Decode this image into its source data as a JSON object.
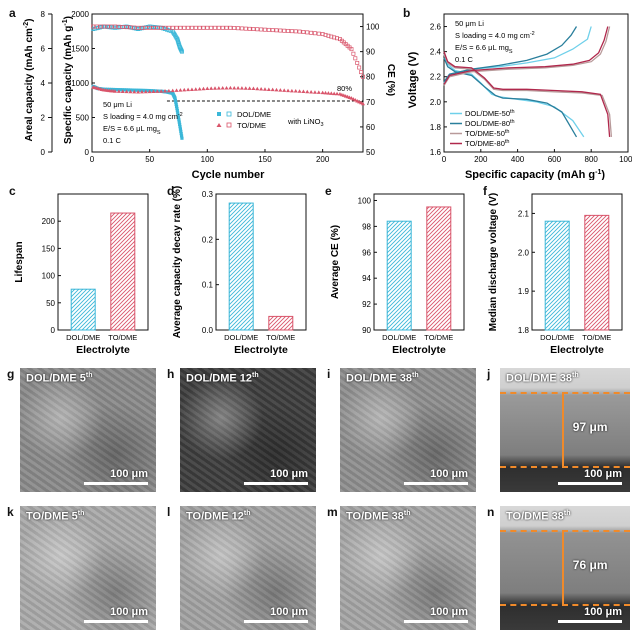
{
  "figure": {
    "panel_letters": [
      "a",
      "b",
      "c",
      "d",
      "e",
      "f",
      "g",
      "h",
      "i",
      "j",
      "k",
      "l",
      "m",
      "n"
    ]
  },
  "colors": {
    "dol": "#3bb7d8",
    "to": "#d9546a",
    "b_dol50": "#6fd0ea",
    "b_dol80": "#2a7f9c",
    "b_to50": "#b89a9a",
    "b_to80": "#b0284c"
  },
  "panel_a": {
    "left_axis_outer_label": "Areal capacity (mAh cm",
    "left_axis_outer_label_sup": "-2",
    "left_axis_outer_label_end": ")",
    "left_axis_inner_label": "Specific capacity (mAh g",
    "left_axis_inner_label_sup": "-1",
    "left_axis_inner_label_end": ")",
    "right_axis_label": "CE (%)",
    "xlabel": "Cycle number",
    "conditions": [
      "50 μm Li",
      "S loading = 4.0 mg cm",
      "E/S = 6.6 μL mg",
      "0.1 C"
    ],
    "conditions_sup": [
      "",
      "-2",
      "S",
      ""
    ],
    "legend_dol": "DOL/DME",
    "legend_to": "TO/DME",
    "legend_note": "with LiNO",
    "legend_note_sub": "3",
    "retention_label": "80%"
  },
  "panel_b": {
    "ylabel": "Voltage (V)",
    "xlabel": "Specific capacity (mAh g",
    "xlabel_sup": "-1",
    "xlabel_end": ")",
    "conditions": [
      "50 μm Li",
      "S loading = 4.0 mg cm",
      "E/S = 6.6 μL mg",
      "0.1 C"
    ],
    "conditions_sup": [
      "",
      "-2",
      "S",
      ""
    ],
    "legend": [
      {
        "name": "DOL/DME-50",
        "sup": "th"
      },
      {
        "name": "DOL/DME-80",
        "sup": "th"
      },
      {
        "name": "TO/DME-50",
        "sup": "th"
      },
      {
        "name": "TO/DME-80",
        "sup": "th"
      }
    ]
  },
  "chart_data": [
    {
      "panel": "a",
      "type": "scatter",
      "xlim": [
        0,
        235
      ],
      "x_ticks": [
        0,
        50,
        100,
        150,
        200
      ],
      "y_specific_lim": [
        0,
        2000
      ],
      "y_specific_ticks": [
        0,
        500,
        1000,
        1500,
        2000
      ],
      "y_areal_lim": [
        0,
        8
      ],
      "y_areal_ticks": [
        0,
        2,
        4,
        6,
        8
      ],
      "y_ce_lim": [
        50,
        105
      ],
      "y_ce_ticks": [
        50,
        60,
        70,
        80,
        90,
        100
      ],
      "series": [
        {
          "name": "DOL/DME",
          "metric": "specific_capacity",
          "x": [
            1,
            5,
            10,
            20,
            30,
            40,
            50,
            60,
            65,
            70,
            72,
            74,
            76,
            78
          ],
          "y": [
            950,
            920,
            910,
            905,
            900,
            895,
            890,
            880,
            870,
            850,
            780,
            600,
            400,
            200
          ]
        },
        {
          "name": "TO/DME",
          "metric": "specific_capacity",
          "x": [
            1,
            10,
            20,
            40,
            60,
            80,
            100,
            120,
            140,
            160,
            180,
            200,
            215,
            225,
            235
          ],
          "y": [
            940,
            900,
            880,
            870,
            880,
            900,
            920,
            930,
            920,
            900,
            880,
            860,
            840,
            780,
            700
          ]
        },
        {
          "name": "DOL/DME",
          "metric": "CE",
          "x": [
            1,
            10,
            20,
            30,
            40,
            50,
            60,
            70,
            74,
            76,
            78
          ],
          "y": [
            99,
            100,
            99.5,
            100,
            99,
            100,
            99.5,
            98,
            95,
            92,
            90
          ]
        },
        {
          "name": "TO/DME",
          "metric": "CE",
          "x": [
            1,
            20,
            40,
            60,
            80,
            100,
            120,
            140,
            160,
            180,
            200,
            215,
            225,
            235
          ],
          "y": [
            100,
            100,
            99.5,
            99.5,
            99.5,
            99.5,
            99.5,
            99,
            98.5,
            98,
            97,
            95,
            91,
            80
          ]
        }
      ],
      "reference_line_specific": 740
    },
    {
      "panel": "b",
      "type": "line",
      "xlim": [
        0,
        1000
      ],
      "x_ticks": [
        0,
        200,
        400,
        600,
        800,
        1000
      ],
      "ylim": [
        1.6,
        2.7
      ],
      "y_ticks": [
        1.6,
        1.8,
        2.0,
        2.2,
        2.4,
        2.6
      ],
      "series": [
        {
          "name": "DOL/DME-50th",
          "branch": "discharge",
          "x": [
            0,
            20,
            60,
            150,
            200,
            260,
            300,
            400,
            500,
            600,
            700,
            760
          ],
          "y": [
            2.38,
            2.3,
            2.25,
            2.22,
            2.15,
            2.06,
            2.04,
            2.02,
            2.0,
            1.96,
            1.85,
            1.72
          ]
        },
        {
          "name": "DOL/DME-50th",
          "branch": "charge",
          "x": [
            0,
            30,
            150,
            300,
            450,
            600,
            700,
            780,
            800
          ],
          "y": [
            2.15,
            2.22,
            2.26,
            2.28,
            2.31,
            2.35,
            2.42,
            2.5,
            2.6
          ]
        },
        {
          "name": "DOL/DME-80th",
          "branch": "discharge",
          "x": [
            0,
            20,
            60,
            150,
            220,
            280,
            320,
            450,
            560,
            640,
            720
          ],
          "y": [
            2.35,
            2.28,
            2.24,
            2.21,
            2.12,
            2.05,
            2.03,
            2.02,
            1.99,
            1.92,
            1.72
          ]
        },
        {
          "name": "DOL/DME-80th",
          "branch": "charge",
          "x": [
            0,
            30,
            150,
            300,
            450,
            560,
            640,
            690,
            720
          ],
          "y": [
            2.16,
            2.22,
            2.26,
            2.29,
            2.33,
            2.38,
            2.45,
            2.53,
            2.6
          ]
        },
        {
          "name": "TO/DME-50th",
          "branch": "discharge",
          "x": [
            0,
            20,
            60,
            150,
            220,
            270,
            320,
            450,
            600,
            750,
            860,
            900,
            910
          ],
          "y": [
            2.38,
            2.31,
            2.27,
            2.26,
            2.18,
            2.1,
            2.09,
            2.09,
            2.08,
            2.07,
            2.05,
            1.9,
            1.72
          ]
        },
        {
          "name": "TO/DME-50th",
          "branch": "charge",
          "x": [
            0,
            30,
            150,
            350,
            550,
            700,
            800,
            850,
            880,
            900
          ],
          "y": [
            2.13,
            2.2,
            2.24,
            2.26,
            2.27,
            2.29,
            2.32,
            2.38,
            2.48,
            2.6
          ]
        },
        {
          "name": "TO/DME-80th",
          "branch": "discharge",
          "x": [
            0,
            20,
            60,
            150,
            220,
            270,
            320,
            450,
            600,
            750,
            850,
            890,
            900
          ],
          "y": [
            2.4,
            2.32,
            2.28,
            2.27,
            2.19,
            2.11,
            2.1,
            2.1,
            2.09,
            2.08,
            2.06,
            1.9,
            1.72
          ]
        },
        {
          "name": "TO/DME-80th",
          "branch": "charge",
          "x": [
            0,
            30,
            150,
            350,
            550,
            700,
            790,
            840,
            870,
            890
          ],
          "y": [
            2.14,
            2.21,
            2.25,
            2.27,
            2.28,
            2.3,
            2.33,
            2.39,
            2.49,
            2.6
          ]
        }
      ]
    },
    {
      "panel": "c",
      "type": "bar",
      "categories": [
        "DOL/DME",
        "TO/DME"
      ],
      "values": [
        75,
        215
      ],
      "ylabel": "Lifespan",
      "xlabel": "Electrolyte",
      "ylim": [
        0,
        250
      ],
      "y_ticks": [
        0,
        50,
        100,
        150,
        200
      ]
    },
    {
      "panel": "d",
      "type": "bar",
      "categories": [
        "DOL/DME",
        "TO/DME"
      ],
      "values": [
        0.28,
        0.03
      ],
      "ylabel": "Average capacity decay rate (%)",
      "xlabel": "Electrolyte",
      "ylim": [
        0,
        0.3
      ],
      "y_ticks": [
        0.0,
        0.1,
        0.2,
        0.3
      ]
    },
    {
      "panel": "e",
      "type": "bar",
      "categories": [
        "DOL/DME",
        "TO/DME"
      ],
      "values": [
        98.4,
        99.5
      ],
      "ylabel": "Average CE (%)",
      "xlabel": "Electrolyte",
      "ylim": [
        90,
        100.5
      ],
      "y_ticks": [
        90,
        92,
        94,
        96,
        98,
        100
      ]
    },
    {
      "panel": "f",
      "type": "bar",
      "categories": [
        "DOL/DME",
        "TO/DME"
      ],
      "values": [
        2.08,
        2.095
      ],
      "ylabel": "Median discharge voltage (V)",
      "xlabel": "Electrolyte",
      "ylim": [
        1.8,
        2.15
      ],
      "y_ticks": [
        1.8,
        1.9,
        2.0,
        2.1
      ]
    }
  ],
  "sem_images": [
    {
      "letter": "g",
      "label": "DOL/DME",
      "cycle": "5",
      "sup": "th",
      "scale": "100 μm",
      "tone": "#8a8a8a"
    },
    {
      "letter": "h",
      "label": "DOL/DME",
      "cycle": "12",
      "sup": "th",
      "scale": "100 μm",
      "tone": "#3d3d3d"
    },
    {
      "letter": "i",
      "label": "DOL/DME",
      "cycle": "38",
      "sup": "th",
      "scale": "100 μm",
      "tone": "#8e8e8e"
    },
    {
      "letter": "j",
      "label": "DOL/DME",
      "cycle": "38",
      "sup": "th",
      "scale": "100 μm",
      "tone": "#9a9a9a",
      "thickness": "97 μm"
    },
    {
      "letter": "k",
      "label": "TO/DME",
      "cycle": "5",
      "sup": "th",
      "scale": "100 μm",
      "tone": "#a9a9a9"
    },
    {
      "letter": "l",
      "label": "TO/DME",
      "cycle": "12",
      "sup": "th",
      "scale": "100 μm",
      "tone": "#a2a2a2"
    },
    {
      "letter": "m",
      "label": "TO/DME",
      "cycle": "38",
      "sup": "th",
      "scale": "100 μm",
      "tone": "#a5a5a5"
    },
    {
      "letter": "n",
      "label": "TO/DME",
      "cycle": "38",
      "sup": "th",
      "scale": "100 μm",
      "tone": "#929292",
      "thickness": "76 μm"
    }
  ]
}
